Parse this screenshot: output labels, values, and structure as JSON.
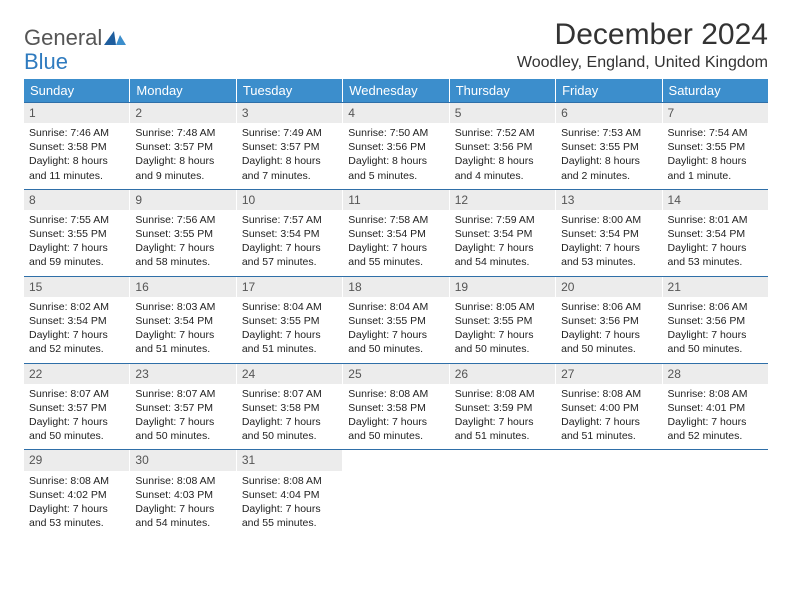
{
  "brand": {
    "word1": "General",
    "word2": "Blue",
    "color1": "#555555",
    "color2": "#2f7bbf"
  },
  "title": "December 2024",
  "location": "Woodley, England, United Kingdom",
  "header_bg": "#3c8ecc",
  "header_fg": "#ffffff",
  "rule_color": "#2f6fa8",
  "daynum_bg": "#ececec",
  "weekdays": [
    "Sunday",
    "Monday",
    "Tuesday",
    "Wednesday",
    "Thursday",
    "Friday",
    "Saturday"
  ],
  "weeks": [
    [
      {
        "n": "1",
        "sr": "7:46 AM",
        "ss": "3:58 PM",
        "dl": "8 hours and 11 minutes."
      },
      {
        "n": "2",
        "sr": "7:48 AM",
        "ss": "3:57 PM",
        "dl": "8 hours and 9 minutes."
      },
      {
        "n": "3",
        "sr": "7:49 AM",
        "ss": "3:57 PM",
        "dl": "8 hours and 7 minutes."
      },
      {
        "n": "4",
        "sr": "7:50 AM",
        "ss": "3:56 PM",
        "dl": "8 hours and 5 minutes."
      },
      {
        "n": "5",
        "sr": "7:52 AM",
        "ss": "3:56 PM",
        "dl": "8 hours and 4 minutes."
      },
      {
        "n": "6",
        "sr": "7:53 AM",
        "ss": "3:55 PM",
        "dl": "8 hours and 2 minutes."
      },
      {
        "n": "7",
        "sr": "7:54 AM",
        "ss": "3:55 PM",
        "dl": "8 hours and 1 minute."
      }
    ],
    [
      {
        "n": "8",
        "sr": "7:55 AM",
        "ss": "3:55 PM",
        "dl": "7 hours and 59 minutes."
      },
      {
        "n": "9",
        "sr": "7:56 AM",
        "ss": "3:55 PM",
        "dl": "7 hours and 58 minutes."
      },
      {
        "n": "10",
        "sr": "7:57 AM",
        "ss": "3:54 PM",
        "dl": "7 hours and 57 minutes."
      },
      {
        "n": "11",
        "sr": "7:58 AM",
        "ss": "3:54 PM",
        "dl": "7 hours and 55 minutes."
      },
      {
        "n": "12",
        "sr": "7:59 AM",
        "ss": "3:54 PM",
        "dl": "7 hours and 54 minutes."
      },
      {
        "n": "13",
        "sr": "8:00 AM",
        "ss": "3:54 PM",
        "dl": "7 hours and 53 minutes."
      },
      {
        "n": "14",
        "sr": "8:01 AM",
        "ss": "3:54 PM",
        "dl": "7 hours and 53 minutes."
      }
    ],
    [
      {
        "n": "15",
        "sr": "8:02 AM",
        "ss": "3:54 PM",
        "dl": "7 hours and 52 minutes."
      },
      {
        "n": "16",
        "sr": "8:03 AM",
        "ss": "3:54 PM",
        "dl": "7 hours and 51 minutes."
      },
      {
        "n": "17",
        "sr": "8:04 AM",
        "ss": "3:55 PM",
        "dl": "7 hours and 51 minutes."
      },
      {
        "n": "18",
        "sr": "8:04 AM",
        "ss": "3:55 PM",
        "dl": "7 hours and 50 minutes."
      },
      {
        "n": "19",
        "sr": "8:05 AM",
        "ss": "3:55 PM",
        "dl": "7 hours and 50 minutes."
      },
      {
        "n": "20",
        "sr": "8:06 AM",
        "ss": "3:56 PM",
        "dl": "7 hours and 50 minutes."
      },
      {
        "n": "21",
        "sr": "8:06 AM",
        "ss": "3:56 PM",
        "dl": "7 hours and 50 minutes."
      }
    ],
    [
      {
        "n": "22",
        "sr": "8:07 AM",
        "ss": "3:57 PM",
        "dl": "7 hours and 50 minutes."
      },
      {
        "n": "23",
        "sr": "8:07 AM",
        "ss": "3:57 PM",
        "dl": "7 hours and 50 minutes."
      },
      {
        "n": "24",
        "sr": "8:07 AM",
        "ss": "3:58 PM",
        "dl": "7 hours and 50 minutes."
      },
      {
        "n": "25",
        "sr": "8:08 AM",
        "ss": "3:58 PM",
        "dl": "7 hours and 50 minutes."
      },
      {
        "n": "26",
        "sr": "8:08 AM",
        "ss": "3:59 PM",
        "dl": "7 hours and 51 minutes."
      },
      {
        "n": "27",
        "sr": "8:08 AM",
        "ss": "4:00 PM",
        "dl": "7 hours and 51 minutes."
      },
      {
        "n": "28",
        "sr": "8:08 AM",
        "ss": "4:01 PM",
        "dl": "7 hours and 52 minutes."
      }
    ],
    [
      {
        "n": "29",
        "sr": "8:08 AM",
        "ss": "4:02 PM",
        "dl": "7 hours and 53 minutes."
      },
      {
        "n": "30",
        "sr": "8:08 AM",
        "ss": "4:03 PM",
        "dl": "7 hours and 54 minutes."
      },
      {
        "n": "31",
        "sr": "8:08 AM",
        "ss": "4:04 PM",
        "dl": "7 hours and 55 minutes."
      },
      null,
      null,
      null,
      null
    ]
  ],
  "labels": {
    "sunrise": "Sunrise:",
    "sunset": "Sunset:",
    "daylight": "Daylight:"
  }
}
